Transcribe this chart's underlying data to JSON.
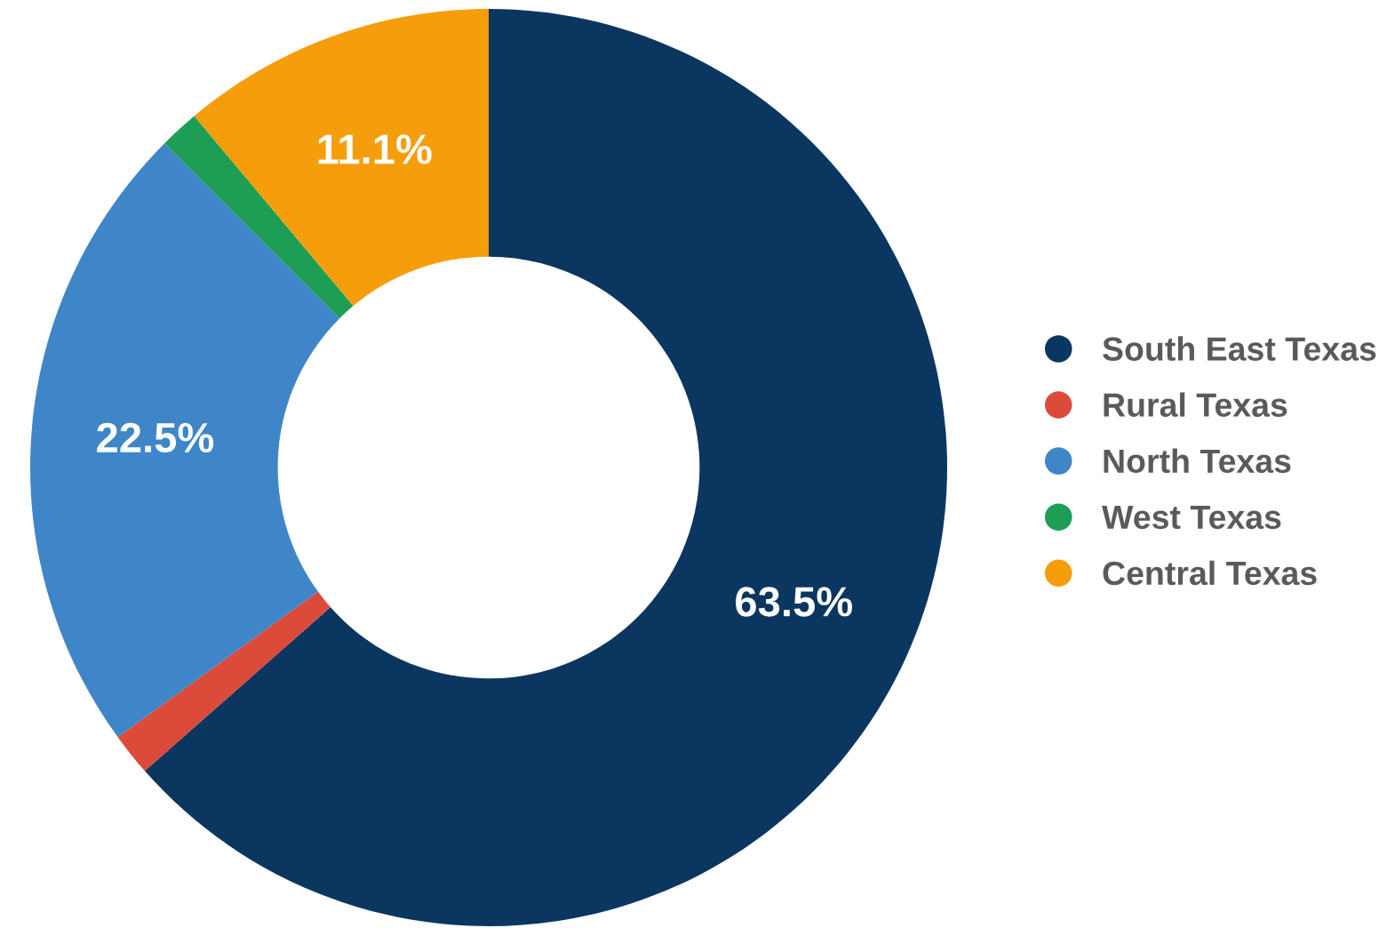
{
  "chart_data": {
    "type": "donut",
    "categories": [
      "South East Texas",
      "Rural Texas",
      "North Texas",
      "West Texas",
      "Central Texas"
    ],
    "values": [
      63.5,
      1.5,
      22.5,
      1.4,
      11.1
    ],
    "value_labels": [
      "63.5%",
      null,
      "22.5%",
      null,
      "11.1%"
    ],
    "colors": [
      "#0b3660",
      "#dc4a3a",
      "#3f86c8",
      "#1e9e55",
      "#f59d0a"
    ],
    "legend": "right"
  }
}
